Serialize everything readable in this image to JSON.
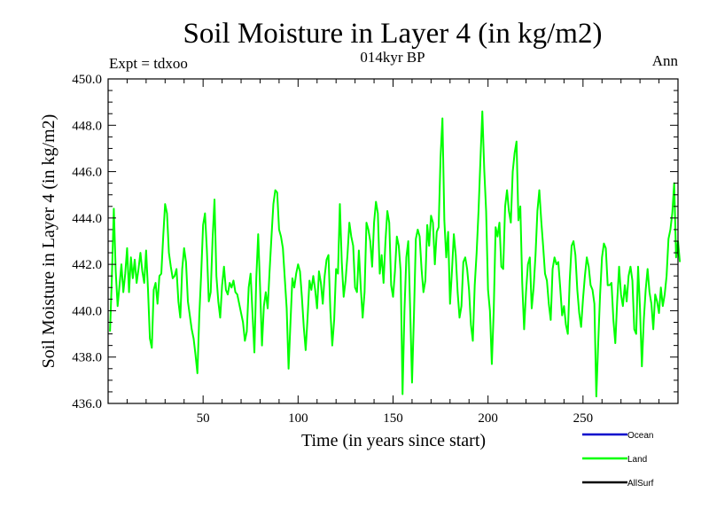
{
  "chart_data": {
    "type": "line",
    "title": "Soil Moisture in Layer 4 (in kg/m2)",
    "subtitle": "014kyr BP",
    "left_note": "Expt = tdxoo",
    "right_note": "Ann",
    "xlabel": "Time (in years since start)",
    "ylabel": "Soil Moisture in Layer 4 (in kg/m2)",
    "xlim": [
      0,
      300
    ],
    "ylim": [
      436.0,
      450.0
    ],
    "x_ticks": [
      50,
      100,
      150,
      200,
      250
    ],
    "y_ticks": [
      "436.0",
      "438.0",
      "440.0",
      "442.0",
      "444.0",
      "446.0",
      "448.0",
      "450.0"
    ],
    "legend": [
      {
        "name": "Ocean",
        "color": "#0000cc"
      },
      {
        "name": "Land",
        "color": "#00ff00"
      },
      {
        "name": "AllSurf",
        "color": "#000000"
      }
    ],
    "series": [
      {
        "name": "Land",
        "color": "#00ff00",
        "x_start": 1,
        "x_step": 1,
        "values": [
          439.1,
          441.5,
          444.4,
          441.7,
          440.2,
          441.1,
          442.0,
          440.8,
          441.6,
          442.7,
          440.8,
          442.3,
          441.4,
          442.2,
          441.2,
          441.8,
          442.5,
          441.7,
          441.2,
          442.6,
          440.9,
          438.8,
          438.4,
          440.9,
          441.2,
          440.3,
          441.5,
          441.6,
          443.2,
          444.6,
          444.2,
          442.5,
          441.9,
          441.4,
          441.5,
          441.8,
          440.4,
          439.7,
          441.8,
          442.7,
          442.1,
          440.4,
          439.8,
          439.2,
          438.8,
          438.1,
          437.3,
          439.8,
          441.6,
          443.7,
          444.2,
          442.6,
          440.4,
          440.8,
          443.1,
          444.8,
          441.5,
          440.4,
          439.7,
          441.1,
          441.9,
          440.9,
          440.7,
          441.2,
          441.0,
          441.3,
          440.8,
          440.7,
          440.3,
          439.9,
          439.5,
          438.7,
          439.1,
          441.0,
          441.6,
          439.9,
          438.2,
          441.4,
          443.3,
          441.0,
          438.5,
          440.2,
          440.8,
          440.1,
          441.7,
          443.2,
          444.6,
          445.2,
          445.1,
          443.5,
          443.2,
          442.7,
          441.4,
          440.1,
          437.5,
          439.5,
          441.4,
          441.0,
          441.6,
          442.0,
          441.7,
          440.6,
          439.3,
          438.3,
          439.7,
          441.3,
          440.9,
          441.5,
          440.9,
          440.1,
          441.7,
          441.2,
          440.3,
          441.5,
          442.2,
          442.4,
          440.0,
          438.5,
          439.6,
          441.8,
          441.6,
          444.6,
          442.1,
          440.6,
          441.3,
          442.4,
          443.8,
          443.2,
          442.8,
          441.0,
          440.8,
          442.6,
          441.0,
          439.7,
          440.8,
          443.8,
          443.5,
          443.0,
          441.9,
          443.8,
          444.7,
          444.2,
          441.6,
          442.4,
          441.2,
          443.0,
          444.3,
          443.8,
          441.1,
          440.6,
          441.7,
          443.2,
          442.8,
          441.7,
          436.4,
          440.0,
          442.3,
          443.0,
          440.1,
          436.9,
          439.8,
          443.1,
          443.5,
          443.2,
          441.8,
          440.8,
          441.3,
          443.7,
          442.8,
          444.1,
          443.8,
          442.0,
          443.4,
          443.6,
          446.6,
          448.3,
          443.9,
          442.3,
          443.4,
          440.3,
          441.7,
          443.3,
          442.4,
          440.8,
          439.7,
          440.2,
          442.1,
          442.3,
          441.8,
          440.9,
          439.4,
          438.7,
          441.1,
          442.5,
          444.3,
          446.5,
          448.6,
          446.1,
          444.3,
          440.9,
          440.0,
          437.7,
          440.0,
          443.6,
          443.2,
          443.8,
          441.9,
          441.8,
          444.5,
          445.2,
          444.3,
          443.8,
          446.0,
          446.8,
          447.3,
          443.9,
          444.5,
          441.2,
          439.2,
          440.8,
          442.0,
          442.3,
          440.1,
          441.0,
          442.4,
          444.3,
          445.2,
          443.9,
          442.8,
          441.6,
          441.3,
          440.3,
          439.6,
          441.8,
          442.3,
          442.0,
          442.1,
          441.0,
          439.8,
          440.2,
          439.4,
          439.0,
          441.3,
          442.8,
          443.0,
          442.4,
          440.9,
          439.9,
          439.3,
          440.5,
          441.5,
          442.3,
          441.9,
          441.1,
          440.9,
          440.3,
          436.3,
          438.6,
          440.7,
          442.3,
          442.9,
          442.7,
          441.1,
          441.1,
          441.2,
          439.6,
          438.6,
          440.4,
          441.9,
          440.7,
          440.2,
          441.1,
          440.4,
          441.5,
          441.9,
          441.3,
          439.2,
          439.0,
          441.9,
          440.1,
          437.6,
          439.6,
          440.9,
          441.8,
          440.8,
          440.3,
          439.2,
          440.7,
          440.4,
          439.9,
          441.0,
          440.2,
          440.7,
          441.5,
          443.1,
          443.5,
          444.2,
          445.5,
          442.3,
          443.0,
          442.1
        ]
      }
    ]
  }
}
